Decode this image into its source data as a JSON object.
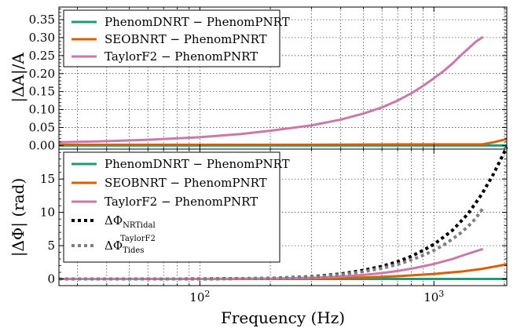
{
  "chart_data": [
    {
      "type": "line",
      "panel": "top",
      "ylabel": "|ΔA|/A",
      "xlabel": "",
      "xscale": "log",
      "xlim": [
        25,
        2048
      ],
      "ylim": [
        -0.01,
        0.385
      ],
      "yticks": [
        0.0,
        0.05,
        0.1,
        0.15,
        0.2,
        0.25,
        0.3,
        0.35
      ],
      "ytick_labels": [
        "0.00",
        "0.05",
        "0.10",
        "0.15",
        "0.20",
        "0.25",
        "0.30",
        "0.35"
      ],
      "grid": true,
      "legend_position": "top-left",
      "series": [
        {
          "name": "PhenomDNRT − PhenomPNRT",
          "color": "#1b9e77",
          "style": "solid",
          "x": [
            25,
            100,
            500,
            1000,
            2048
          ],
          "y": [
            0.0,
            0.0,
            0.0,
            0.0,
            0.0
          ]
        },
        {
          "name": "SEOBNRT − PhenomPNRT",
          "color": "#d95f02",
          "style": "solid",
          "x": [
            25,
            100,
            300,
            700,
            1000,
            1300,
            1600,
            1800,
            2048
          ],
          "y": [
            0.002,
            0.002,
            0.002,
            0.003,
            0.003,
            0.003,
            0.003,
            0.009,
            0.018
          ]
        },
        {
          "name": "TaylorF2 − PhenomPNRT",
          "color": "#cc79a7",
          "style": "solid",
          "x": [
            25,
            40,
            60,
            100,
            150,
            200,
            300,
            400,
            500,
            600,
            700,
            800,
            900,
            1000,
            1100,
            1200,
            1300,
            1400,
            1500,
            1620
          ],
          "y": [
            0.009,
            0.012,
            0.016,
            0.023,
            0.032,
            0.041,
            0.056,
            0.072,
            0.089,
            0.106,
            0.125,
            0.145,
            0.166,
            0.187,
            0.207,
            0.228,
            0.25,
            0.269,
            0.287,
            0.302
          ]
        }
      ]
    },
    {
      "type": "line",
      "panel": "bottom",
      "ylabel": "|ΔΦ| (rad)",
      "xlabel": "Frequency (Hz)",
      "xscale": "log",
      "xlim": [
        25,
        2048
      ],
      "ylim": [
        -1.0,
        19.5
      ],
      "xticks": [
        100,
        1000
      ],
      "yticks": [
        0,
        5,
        10,
        15
      ],
      "ytick_labels": [
        "0",
        "5",
        "10",
        "15"
      ],
      "grid": true,
      "legend_position": "top-left",
      "series": [
        {
          "name": "PhenomDNRT − PhenomPNRT",
          "color": "#1b9e77",
          "style": "solid",
          "x": [
            25,
            100,
            500,
            1000,
            2048
          ],
          "y": [
            0.0,
            0.0,
            0.0,
            0.0,
            0.0
          ]
        },
        {
          "name": "SEOBNRT − PhenomPNRT",
          "color": "#d95f02",
          "style": "solid",
          "x": [
            25,
            100,
            200,
            300,
            500,
            700,
            1000,
            1300,
            1600,
            2048
          ],
          "y": [
            0.0,
            0.0,
            0.02,
            0.06,
            0.22,
            0.42,
            0.75,
            1.1,
            1.5,
            2.2
          ]
        },
        {
          "name": "TaylorF2 − PhenomPNRT",
          "color": "#cc79a7",
          "style": "solid",
          "x": [
            25,
            100,
            200,
            300,
            400,
            500,
            600,
            700,
            800,
            900,
            1000,
            1200,
            1400,
            1620
          ],
          "y": [
            0.0,
            0.01,
            0.06,
            0.18,
            0.36,
            0.6,
            0.88,
            1.2,
            1.55,
            1.9,
            2.25,
            3.0,
            3.8,
            4.5
          ]
        },
        {
          "name": "ΔΦ_NRTidal",
          "label_main": "ΔΦ",
          "label_sub": "NRTidal",
          "color": "#000000",
          "style": "dotted",
          "x": [
            25,
            100,
            200,
            300,
            400,
            500,
            600,
            700,
            800,
            900,
            1000,
            1200,
            1400,
            1600,
            1800,
            2048
          ],
          "y": [
            0.0,
            0.01,
            0.1,
            0.35,
            0.75,
            1.3,
            1.9,
            2.6,
            3.4,
            4.3,
            5.2,
            7.3,
            9.8,
            12.7,
            15.8,
            19.8
          ]
        },
        {
          "name": "ΔΦ_Tides^TaylorF2",
          "label_main": "ΔΦ",
          "label_sub": "Tides",
          "label_sup": "TaylorF2",
          "color": "#808080",
          "style": "dotted",
          "x": [
            25,
            100,
            200,
            300,
            400,
            500,
            600,
            700,
            800,
            900,
            1000,
            1100,
            1200,
            1300,
            1400,
            1500,
            1620
          ],
          "y": [
            0.0,
            0.01,
            0.09,
            0.3,
            0.65,
            1.1,
            1.6,
            2.2,
            2.85,
            3.55,
            4.3,
            5.1,
            6.0,
            6.9,
            7.9,
            9.0,
            10.6
          ]
        }
      ]
    }
  ],
  "x_tick_labels": {
    "t100": {
      "base": "10",
      "exp": "2"
    },
    "t1000": {
      "base": "10",
      "exp": "3"
    }
  }
}
